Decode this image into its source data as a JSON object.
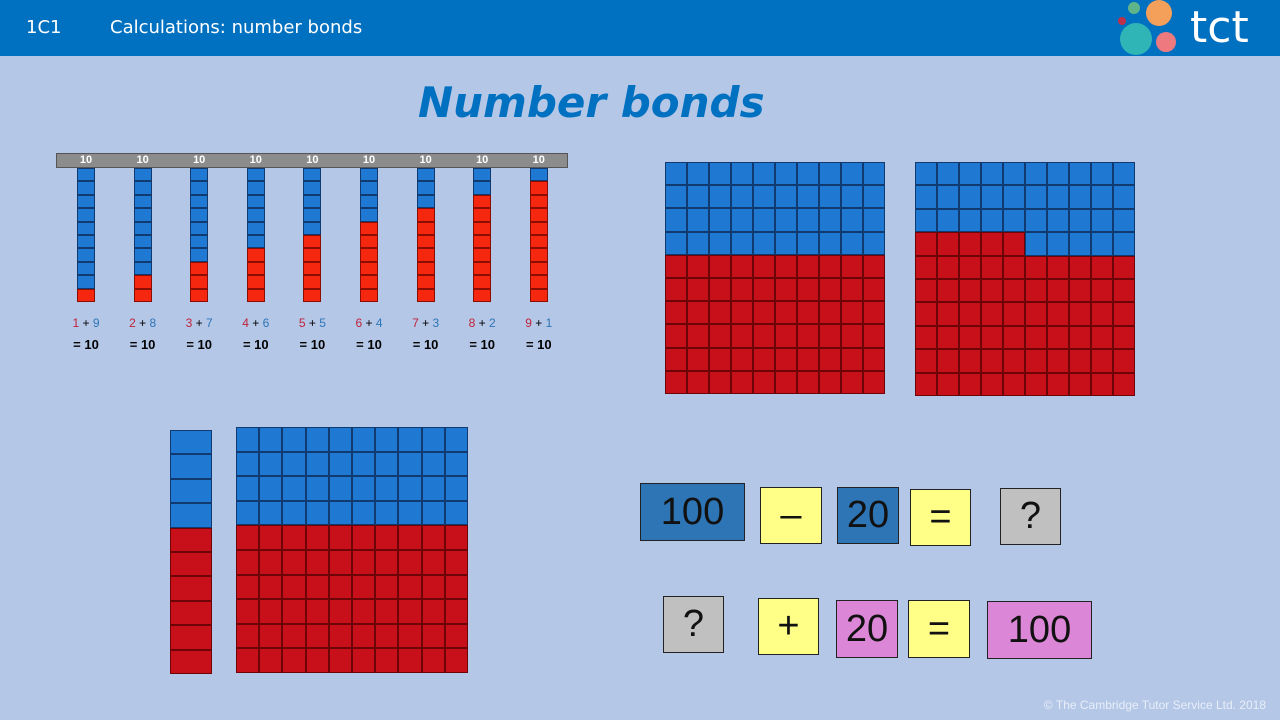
{
  "header": {
    "code": "1C1",
    "title": "Calculations: number bonds",
    "logo_text": "tct",
    "color": "#0070c0"
  },
  "title": "Number bonds",
  "bonds": {
    "total_label": "10",
    "pairs": [
      [
        1,
        9
      ],
      [
        2,
        8
      ],
      [
        3,
        7
      ],
      [
        4,
        6
      ],
      [
        5,
        5
      ],
      [
        6,
        4
      ],
      [
        7,
        3
      ],
      [
        8,
        2
      ],
      [
        9,
        1
      ]
    ],
    "result": "= 10"
  },
  "grids": {
    "grid_a_red": 60,
    "grid_b_red": 65,
    "grid_c_red": 60,
    "tower_red": 6
  },
  "equations": [
    {
      "cells": [
        {
          "text": "100",
          "color": "#2e75b6"
        },
        {
          "text": "–",
          "color": "#ffff88"
        },
        {
          "text": "20",
          "color": "#2e75b6"
        },
        {
          "text": "=",
          "color": "#ffff88"
        },
        {
          "text": "?",
          "color": "#c0c0c0"
        }
      ]
    },
    {
      "cells": [
        {
          "text": "?",
          "color": "#c0c0c0"
        },
        {
          "text": "+",
          "color": "#ffff88"
        },
        {
          "text": "20",
          "color": "#db86d6"
        },
        {
          "text": "=",
          "color": "#ffff88"
        },
        {
          "text": "100",
          "color": "#db86d6"
        }
      ]
    }
  ],
  "footer": "©  The Cambridge Tutor Service Ltd.  2018"
}
